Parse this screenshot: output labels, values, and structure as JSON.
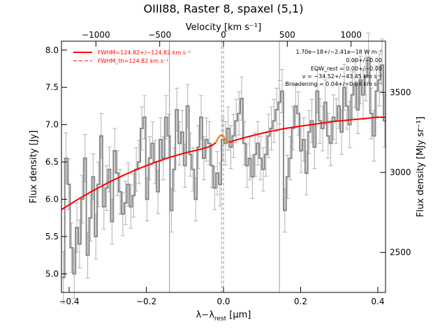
{
  "chart_data": {
    "type": "line",
    "title": "OIII88, Raster 8, spaxel (5,1)",
    "xlabel_main": "λ−λ",
    "xlabel_sub": "rest",
    "xlabel_unit": " [μm]",
    "ylabel": "Flux density [Jy]",
    "x2label": "Velocity [km s⁻¹]",
    "y2label": "Flux density [MJy sr⁻¹]",
    "xlim": [
      -0.42,
      0.42
    ],
    "ylim": [
      4.75,
      8.12
    ],
    "x2lim": [
      -1270,
      1270
    ],
    "y2lim": [
      2250,
      3820
    ],
    "xticks": [
      -0.4,
      -0.2,
      0.0,
      0.2,
      0.4
    ],
    "xtick_labels": [
      "−0.4",
      "−0.2",
      "0.0",
      "0.2",
      "0.4"
    ],
    "yticks": [
      5.0,
      5.5,
      6.0,
      6.5,
      7.0,
      7.5,
      8.0
    ],
    "ytick_labels": [
      "5.0",
      "5.5",
      "6.0",
      "6.5",
      "7.0",
      "7.5",
      "8.0"
    ],
    "x2ticks": [
      -1000,
      -500,
      0,
      500,
      1000
    ],
    "x2tick_labels": [
      "−1000",
      "−500",
      "0",
      "500",
      "1000"
    ],
    "y2ticks": [
      2500,
      3000,
      3500
    ],
    "y2tick_labels": [
      "2500",
      "3000",
      "3500"
    ],
    "vlines_solid": [
      -0.14,
      0.145
    ],
    "vlines_dashed": [
      -0.005,
      0.0
    ],
    "legend": [
      {
        "label": "FWHM=124.82+/−124.82 km s⁻¹",
        "style": "solid",
        "color": "#ff0000"
      },
      {
        "label": "FWHM_th=124.82 km s⁻¹",
        "style": "dashed",
        "color": "#ff0000"
      }
    ],
    "annotations": [
      "1.70e−18+/−2.41e−18 W m⁻²",
      "0.00+/−0.00",
      "EQW_rest = 0.00+/−0.00",
      "v = −34.52+/−43.45 km s⁻¹",
      "Broadening = 0.04+/−0.04 km s⁻¹"
    ],
    "spectrum": {
      "name": "data",
      "color": "#888888",
      "x": [
        -0.415,
        -0.408,
        -0.401,
        -0.394,
        -0.387,
        -0.38,
        -0.373,
        -0.366,
        -0.359,
        -0.352,
        -0.345,
        -0.338,
        -0.331,
        -0.324,
        -0.317,
        -0.31,
        -0.303,
        -0.296,
        -0.289,
        -0.282,
        -0.275,
        -0.268,
        -0.261,
        -0.254,
        -0.247,
        -0.24,
        -0.233,
        -0.226,
        -0.219,
        -0.212,
        -0.205,
        -0.198,
        -0.191,
        -0.184,
        -0.177,
        -0.17,
        -0.163,
        -0.156,
        -0.149,
        -0.142,
        -0.135,
        -0.128,
        -0.121,
        -0.114,
        -0.107,
        -0.1,
        -0.093,
        -0.086,
        -0.079,
        -0.072,
        -0.065,
        -0.058,
        -0.051,
        -0.044,
        -0.037,
        -0.03,
        -0.023,
        -0.016,
        -0.009,
        -0.002,
        0.005,
        0.012,
        0.019,
        0.026,
        0.033,
        0.04,
        0.047,
        0.054,
        0.061,
        0.068,
        0.075,
        0.082,
        0.089,
        0.096,
        0.103,
        0.11,
        0.117,
        0.124,
        0.131,
        0.138,
        0.145,
        0.152,
        0.159,
        0.166,
        0.173,
        0.18,
        0.187,
        0.194,
        0.201,
        0.208,
        0.215,
        0.222,
        0.229,
        0.236,
        0.243,
        0.25,
        0.257,
        0.264,
        0.271,
        0.278,
        0.285,
        0.292,
        0.299,
        0.306,
        0.313,
        0.32,
        0.327,
        0.334,
        0.341,
        0.348,
        0.355,
        0.362,
        0.369,
        0.376,
        0.383,
        0.39,
        0.397,
        0.404,
        0.411,
        0.418
      ],
      "y": [
        4.95,
        6.55,
        6.2,
        5.35,
        5.0,
        5.62,
        5.4,
        6.0,
        6.55,
        5.25,
        5.75,
        6.3,
        5.5,
        6.2,
        6.85,
        5.9,
        6.15,
        6.4,
        5.7,
        6.65,
        6.35,
        6.1,
        5.8,
        5.95,
        6.2,
        5.9,
        6.05,
        6.4,
        6.5,
        6.95,
        7.1,
        6.0,
        6.55,
        6.75,
        6.5,
        6.1,
        6.8,
        6.55,
        7.1,
        6.85,
        5.85,
        6.4,
        7.2,
        6.75,
        6.9,
        6.45,
        7.25,
        6.6,
        6.4,
        6.0,
        6.7,
        7.1,
        6.55,
        6.8,
        6.75,
        6.45,
        6.15,
        6.35,
        6.2,
        6.8,
        6.75,
        6.95,
        6.7,
        6.85,
        7.05,
        7.15,
        7.35,
        6.75,
        6.45,
        6.55,
        6.3,
        6.6,
        6.75,
        6.55,
        6.4,
        6.6,
        6.85,
        6.95,
        7.05,
        7.2,
        7.3,
        7.45,
        5.85,
        6.3,
        6.55,
        6.95,
        7.25,
        7.15,
        6.65,
        6.8,
        6.35,
        6.9,
        7.05,
        6.7,
        7.45,
        7.05,
        6.95,
        7.3,
        6.85,
        6.75,
        7.1,
        7.05,
        7.25,
        6.9,
        7.5,
        7.25,
        7.0,
        7.4,
        7.55,
        7.2,
        7.6,
        7.4,
        7.65,
        7.9,
        7.15,
        6.85,
        7.45,
        7.6,
        7.8,
        7.05
      ],
      "err": [
        0.35,
        0.34,
        0.34,
        0.33,
        0.33,
        0.33,
        0.32,
        0.32,
        0.32,
        0.31,
        0.31,
        0.31,
        0.3,
        0.3,
        0.3,
        0.3,
        0.3,
        0.3,
        0.3,
        0.3,
        0.3,
        0.3,
        0.29,
        0.29,
        0.29,
        0.29,
        0.29,
        0.29,
        0.29,
        0.29,
        0.29,
        0.29,
        0.29,
        0.29,
        0.29,
        0.29,
        0.29,
        0.29,
        0.29,
        0.29,
        0.29,
        0.29,
        0.29,
        0.29,
        0.29,
        0.29,
        0.29,
        0.29,
        0.29,
        0.29,
        0.29,
        0.29,
        0.29,
        0.29,
        0.29,
        0.29,
        0.29,
        0.29,
        0.29,
        0.29,
        0.29,
        0.29,
        0.29,
        0.29,
        0.29,
        0.29,
        0.29,
        0.29,
        0.29,
        0.29,
        0.29,
        0.29,
        0.29,
        0.29,
        0.29,
        0.29,
        0.29,
        0.29,
        0.29,
        0.29,
        0.29,
        0.29,
        0.29,
        0.29,
        0.29,
        0.29,
        0.29,
        0.29,
        0.29,
        0.29,
        0.29,
        0.29,
        0.29,
        0.29,
        0.29,
        0.3,
        0.3,
        0.3,
        0.3,
        0.3,
        0.3,
        0.3,
        0.3,
        0.3,
        0.31,
        0.31,
        0.31,
        0.31,
        0.32,
        0.32,
        0.32,
        0.33,
        0.33,
        0.33,
        0.34,
        0.34,
        0.34,
        0.35,
        0.35,
        0.35
      ]
    },
    "model": {
      "name": "fit",
      "color": "#ff0000",
      "x": [
        -0.42,
        -0.38,
        -0.34,
        -0.3,
        -0.26,
        -0.22,
        -0.18,
        -0.14,
        -0.1,
        -0.06,
        -0.04,
        -0.03,
        -0.02,
        -0.015,
        -0.01,
        -0.005,
        0.0,
        0.005,
        0.01,
        0.02,
        0.03,
        0.05,
        0.08,
        0.12,
        0.16,
        0.2,
        0.24,
        0.28,
        0.32,
        0.36,
        0.4,
        0.42
      ],
      "y": [
        5.86,
        5.99,
        6.11,
        6.22,
        6.32,
        6.41,
        6.49,
        6.56,
        6.62,
        6.67,
        6.7,
        6.72,
        6.76,
        6.81,
        6.85,
        6.86,
        6.84,
        6.8,
        6.77,
        6.77,
        6.79,
        6.82,
        6.86,
        6.91,
        6.95,
        6.98,
        7.01,
        7.04,
        7.06,
        7.08,
        7.1,
        7.1
      ]
    },
    "model_highlight": {
      "name": "line",
      "color": "#ff8000",
      "x": [
        -0.02,
        -0.015,
        -0.01,
        -0.005,
        0.0,
        0.005,
        0.01,
        0.015
      ],
      "y": [
        6.76,
        6.81,
        6.85,
        6.86,
        6.84,
        6.8,
        6.77,
        6.76
      ]
    }
  }
}
